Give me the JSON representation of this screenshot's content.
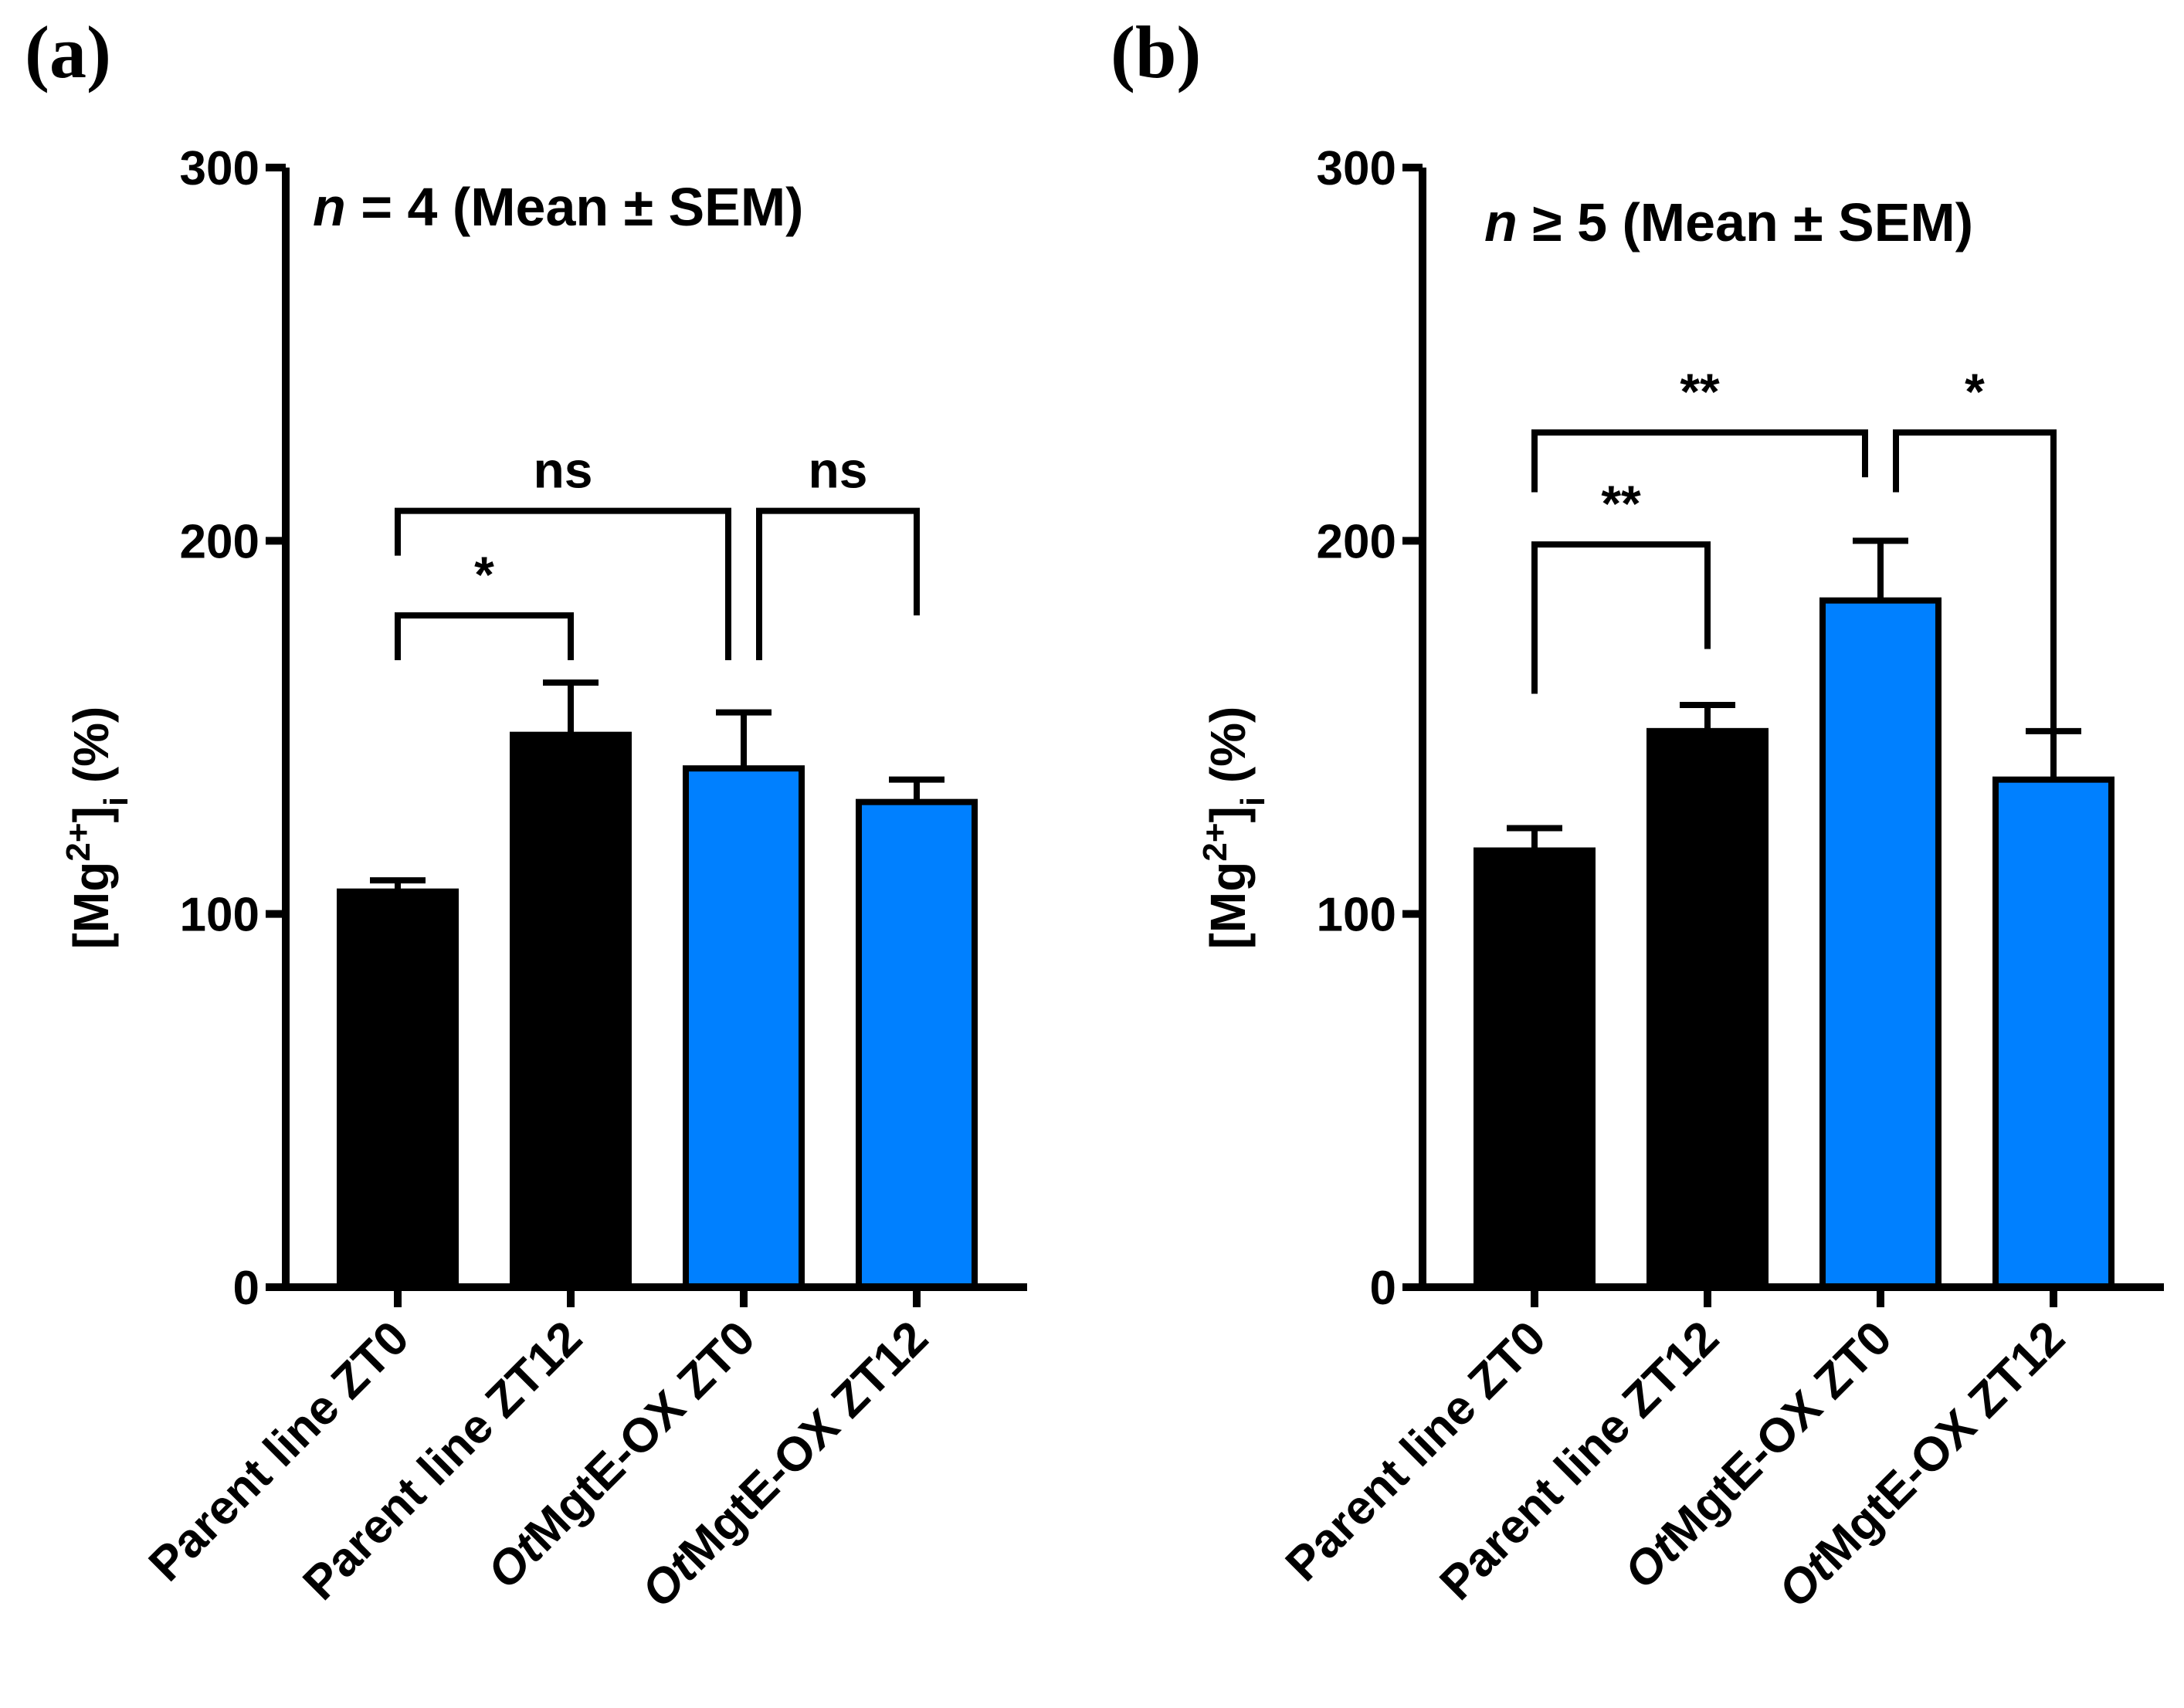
{
  "chart_data": [
    {
      "type": "bar",
      "panel_label": "(a)",
      "annotation": {
        "italic": "n",
        "rest": " = 4  (Mean ± SEM)"
      },
      "ylabel": {
        "base": "[Mg",
        "sup": "2+",
        "close": "]",
        "sub": "i",
        "unit": " (%)"
      },
      "ylim": [
        0,
        300
      ],
      "yticks": [
        0,
        100,
        200,
        300
      ],
      "categories": [
        {
          "italic": "",
          "rest": "Parent line ZT0"
        },
        {
          "italic": "",
          "rest": "Parent line ZT12"
        },
        {
          "italic": "Ot",
          "rest": "MgtE-OX ZT0"
        },
        {
          "italic": "Ot",
          "rest": "MgtE-OX ZT12"
        }
      ],
      "values": [
        106,
        148,
        139,
        130
      ],
      "errors": [
        3,
        14,
        15,
        6
      ],
      "bar_colors": [
        "#000000",
        "#000000",
        "#0080ff",
        "#0080ff"
      ],
      "significance": [
        {
          "from": 0,
          "to": 1,
          "label": "*",
          "y": 180,
          "left_drop": 12,
          "right_drop": 12
        },
        {
          "from": 0,
          "to": 2,
          "label": "ns",
          "y": 208,
          "left_drop": 12,
          "right_drop": 40
        },
        {
          "from": 2,
          "to": 3,
          "label": "ns",
          "y": 208,
          "left_drop": 40,
          "right_drop": 28
        }
      ]
    },
    {
      "type": "bar",
      "panel_label": "(b)",
      "annotation": {
        "italic": "n",
        "rest": " ≥ 5  (Mean ± SEM)"
      },
      "ylabel": {
        "base": "[Mg",
        "sup": "2+",
        "close": "]",
        "sub": "i",
        "unit": " (%)"
      },
      "ylim": [
        0,
        300
      ],
      "yticks": [
        0,
        100,
        200,
        300
      ],
      "categories": [
        {
          "italic": "",
          "rest": "Parent line ZT0"
        },
        {
          "italic": "",
          "rest": "Parent line ZT12"
        },
        {
          "italic": "Ot",
          "rest": "MgtE-OX ZT0"
        },
        {
          "italic": "Ot",
          "rest": "MgtE-OX ZT12"
        }
      ],
      "values": [
        117,
        149,
        184,
        136
      ],
      "errors": [
        6,
        7,
        16,
        13
      ],
      "bar_colors": [
        "#000000",
        "#000000",
        "#0080ff",
        "#0080ff"
      ],
      "significance": [
        {
          "from": 0,
          "to": 1,
          "label": "**",
          "y": 199,
          "left_drop": 40,
          "right_drop": 28
        },
        {
          "from": 0,
          "to": 2,
          "label": "**",
          "y": 229,
          "left_drop": 16,
          "right_drop": 12
        },
        {
          "from": 2,
          "to": 3,
          "label": "*",
          "y": 229,
          "left_drop": 16,
          "right_drop": 80
        }
      ]
    }
  ]
}
